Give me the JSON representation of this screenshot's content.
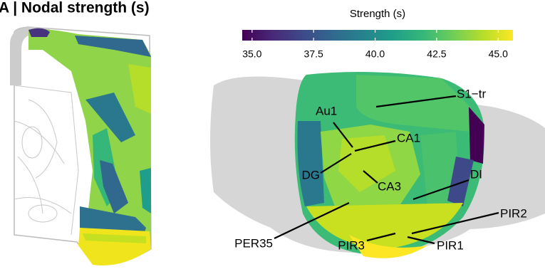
{
  "chart_data": {
    "type": "colorbar",
    "title": "A | Nodal strength (s)",
    "colorbar_label": "Strength (s)",
    "clim": [
      34.6,
      45.6
    ],
    "ticks": [
      {
        "value": 35,
        "label": "35.0"
      },
      {
        "value": 37.5,
        "label": "37.5"
      },
      {
        "value": 40,
        "label": "40.0"
      },
      {
        "value": 42.5,
        "label": "42.5"
      },
      {
        "value": 45,
        "label": "45.0"
      }
    ],
    "colors": [
      "#440154",
      "#482878",
      "#3e4989",
      "#31688e",
      "#26828e",
      "#1f9e89",
      "#35b779",
      "#6ece58",
      "#b5de2b",
      "#fde725"
    ],
    "regions": [
      "S1−tr",
      "Au1",
      "CA1",
      "DG",
      "CA3",
      "DI",
      "PIR2",
      "PER35",
      "PIR3",
      "PIR1"
    ]
  }
}
